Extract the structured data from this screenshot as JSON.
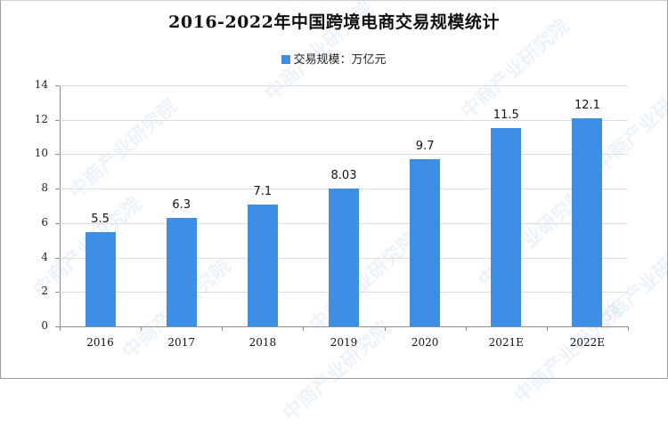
{
  "chart_data": {
    "type": "bar",
    "title": "2016-2022年中国跨境电商交易规模统计",
    "legend": [
      {
        "label": "交易规模：万亿元",
        "color": "#3d8fe6"
      }
    ],
    "legend_position": "top",
    "categories": [
      "2016",
      "2017",
      "2018",
      "2019",
      "2020",
      "2021E",
      "2022E"
    ],
    "series": [
      {
        "name": "交易规模：万亿元",
        "values": [
          5.5,
          6.3,
          7.1,
          8.03,
          9.7,
          11.5,
          12.1
        ]
      }
    ],
    "data_labels": [
      "5.5",
      "6.3",
      "7.1",
      "8.03",
      "9.7",
      "11.5",
      "12.1"
    ],
    "xlabel": "",
    "ylabel": "",
    "ylim": [
      0,
      14
    ],
    "yticks": [
      "0",
      "2",
      "4",
      "6",
      "8",
      "10",
      "12",
      "14"
    ],
    "grid": true
  },
  "watermark": "中商产业研究院"
}
